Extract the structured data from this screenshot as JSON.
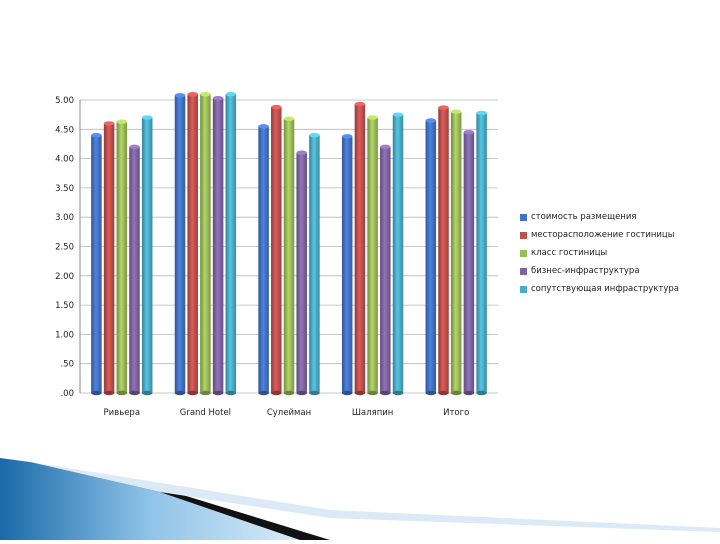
{
  "chart_data": {
    "type": "bar",
    "categories": [
      "Ривьера",
      "Grand Hotel",
      "Сулейман",
      "Шаляпин",
      "Итого"
    ],
    "series": [
      {
        "name": "стоимость размещения",
        "color": "#4472C4",
        "values": [
          4.4,
          5.08,
          4.55,
          4.38,
          4.65
        ]
      },
      {
        "name": "месторасположение гостиницы",
        "color": "#C0504D",
        "values": [
          4.6,
          5.1,
          4.88,
          4.93,
          4.87
        ]
      },
      {
        "name": "класс гостиницы",
        "color": "#9BBB59",
        "values": [
          4.63,
          5.1,
          4.68,
          4.7,
          4.8
        ]
      },
      {
        "name": "бизнес-инфраструктура",
        "color": "#8064A2",
        "values": [
          4.2,
          5.03,
          4.1,
          4.2,
          4.45
        ]
      },
      {
        "name": "сопутствующая инфраструктура",
        "color": "#4BACC6",
        "values": [
          4.7,
          5.1,
          4.4,
          4.75,
          4.78
        ]
      }
    ],
    "y_ticks": [
      "5.00",
      "4.50",
      "4.00",
      "3.50",
      "3.00",
      "2.50",
      "2.00",
      "1.50",
      "1.00",
      ".50",
      ".00"
    ],
    "ylim": [
      0,
      5
    ],
    "grid": true,
    "legend_position": "right"
  }
}
